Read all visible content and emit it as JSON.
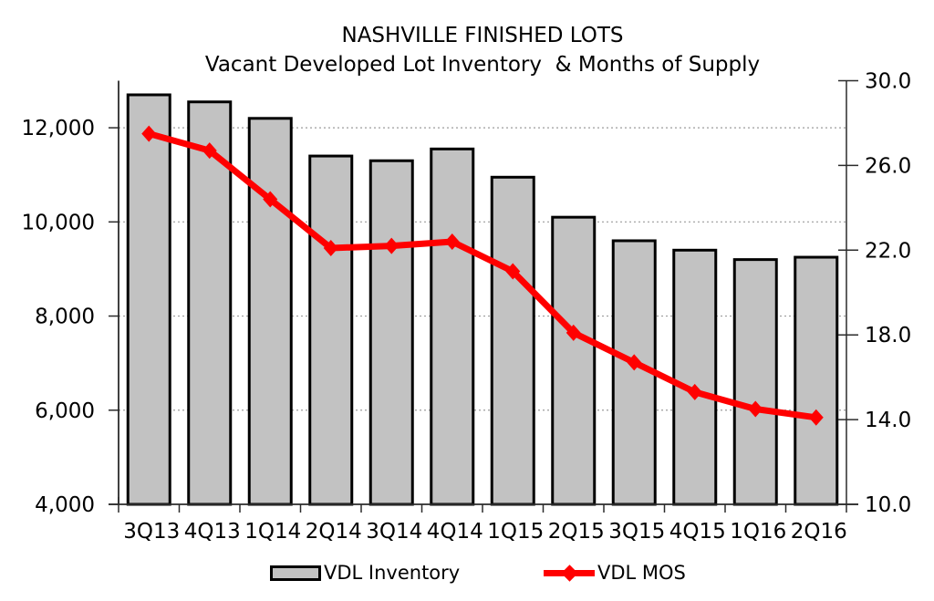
{
  "chart_data": {
    "type": "combo-bar-line",
    "title": "NASHVILLE FINISHED LOTS",
    "subtitle": "Vacant Developed Lot Inventory  & Months of Supply",
    "categories": [
      "3Q13",
      "4Q13",
      "1Q14",
      "2Q14",
      "3Q14",
      "4Q14",
      "1Q15",
      "2Q15",
      "3Q15",
      "4Q15",
      "1Q16",
      "2Q16"
    ],
    "series": [
      {
        "name": "VDL Inventory",
        "type": "bar",
        "axis": "left",
        "values": [
          12700,
          12550,
          12200,
          11400,
          11300,
          11550,
          10950,
          10100,
          9600,
          9400,
          9200,
          9250
        ],
        "fill": "#C2C2C2",
        "border": "#000000"
      },
      {
        "name": "VDL MOS",
        "type": "line",
        "axis": "right",
        "marker": "diamond",
        "values": [
          27.5,
          26.7,
          24.4,
          22.1,
          22.2,
          22.4,
          21.0,
          18.1,
          16.7,
          15.3,
          14.5,
          14.1
        ],
        "color": "#FF0000"
      }
    ],
    "left_axis": {
      "min": 4000,
      "max": 13000,
      "tick_values": [
        4000,
        6000,
        8000,
        10000,
        12000
      ],
      "tick_labels": [
        "4,000",
        "6,000",
        "8,000",
        "10,000",
        "12,000"
      ]
    },
    "right_axis": {
      "min": 10,
      "max": 30,
      "tick_values": [
        10,
        14,
        18,
        22,
        26,
        30
      ],
      "tick_labels": [
        "10.0",
        "14.0",
        "18.0",
        "22.0",
        "26.0",
        "30.0"
      ]
    },
    "grid": {
      "horizontal_dotted_at_left_values": [
        6000,
        8000,
        10000,
        12000
      ],
      "color": "#9B9B9B"
    },
    "axis_color": "#2B2B2B",
    "legend": {
      "position": "bottom"
    }
  }
}
